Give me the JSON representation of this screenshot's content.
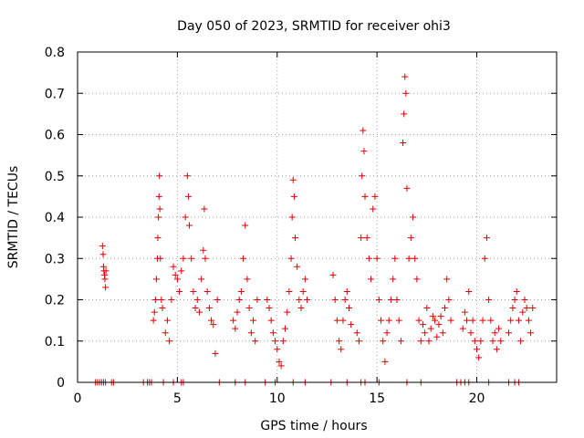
{
  "chart_data": {
    "type": "scatter",
    "title": "Day 050 of 2023, SRMTID for receiver ohi3",
    "xlabel": "GPS time / hours",
    "ylabel": "SRMTID / TECUs",
    "xlim": [
      0,
      24
    ],
    "ylim": [
      0,
      0.8
    ],
    "xticks": [
      0,
      5,
      10,
      15,
      20
    ],
    "yticks": [
      0,
      0.1,
      0.2,
      0.3,
      0.4,
      0.5,
      0.6,
      0.7,
      0.8
    ],
    "xtick_labels": [
      "0",
      "5",
      "10",
      "15",
      "20"
    ],
    "ytick_labels": [
      "0",
      "0.1",
      "0.2",
      "0.3",
      "0.4",
      "0.5",
      "0.6",
      "0.7",
      "0.8"
    ],
    "grid": true,
    "marker": "+",
    "marker_color": "#e00000",
    "series": [
      {
        "name": "SRMTID",
        "points": [
          [
            1.25,
            0.33
          ],
          [
            1.28,
            0.31
          ],
          [
            1.3,
            0.28
          ],
          [
            1.32,
            0.27
          ],
          [
            1.35,
            0.26
          ],
          [
            1.37,
            0.25
          ],
          [
            1.4,
            0.23
          ],
          [
            1.42,
            0.27
          ],
          [
            3.8,
            0.15
          ],
          [
            3.85,
            0.17
          ],
          [
            3.9,
            0.2
          ],
          [
            3.95,
            0.25
          ],
          [
            4.0,
            0.3
          ],
          [
            4.02,
            0.35
          ],
          [
            4.05,
            0.4
          ],
          [
            4.08,
            0.45
          ],
          [
            4.1,
            0.5
          ],
          [
            4.12,
            0.42
          ],
          [
            4.15,
            0.3
          ],
          [
            4.2,
            0.2
          ],
          [
            4.25,
            0.18
          ],
          [
            4.4,
            0.12
          ],
          [
            4.5,
            0.15
          ],
          [
            4.6,
            0.1
          ],
          [
            4.7,
            0.2
          ],
          [
            4.8,
            0.28
          ],
          [
            4.9,
            0.26
          ],
          [
            5.0,
            0.25
          ],
          [
            5.1,
            0.22
          ],
          [
            5.2,
            0.27
          ],
          [
            5.3,
            0.3
          ],
          [
            5.4,
            0.4
          ],
          [
            5.5,
            0.5
          ],
          [
            5.55,
            0.45
          ],
          [
            5.6,
            0.38
          ],
          [
            5.7,
            0.3
          ],
          [
            5.8,
            0.22
          ],
          [
            5.9,
            0.18
          ],
          [
            6.0,
            0.2
          ],
          [
            6.1,
            0.17
          ],
          [
            6.2,
            0.25
          ],
          [
            6.3,
            0.32
          ],
          [
            6.35,
            0.42
          ],
          [
            6.4,
            0.3
          ],
          [
            6.5,
            0.22
          ],
          [
            6.6,
            0.18
          ],
          [
            6.7,
            0.15
          ],
          [
            6.8,
            0.14
          ],
          [
            6.9,
            0.07
          ],
          [
            7.0,
            0.2
          ],
          [
            7.8,
            0.15
          ],
          [
            7.9,
            0.13
          ],
          [
            8.0,
            0.17
          ],
          [
            8.1,
            0.2
          ],
          [
            8.2,
            0.22
          ],
          [
            8.3,
            0.3
          ],
          [
            8.4,
            0.38
          ],
          [
            8.5,
            0.25
          ],
          [
            8.6,
            0.18
          ],
          [
            8.7,
            0.12
          ],
          [
            8.8,
            0.15
          ],
          [
            8.9,
            0.1
          ],
          [
            9.0,
            0.2
          ],
          [
            9.5,
            0.2
          ],
          [
            9.6,
            0.18
          ],
          [
            9.7,
            0.15
          ],
          [
            9.8,
            0.12
          ],
          [
            9.9,
            0.1
          ],
          [
            10.0,
            0.08
          ],
          [
            10.1,
            0.05
          ],
          [
            10.2,
            0.04
          ],
          [
            10.3,
            0.1
          ],
          [
            10.4,
            0.13
          ],
          [
            10.5,
            0.17
          ],
          [
            10.6,
            0.22
          ],
          [
            10.7,
            0.3
          ],
          [
            10.75,
            0.4
          ],
          [
            10.8,
            0.49
          ],
          [
            10.85,
            0.45
          ],
          [
            10.9,
            0.35
          ],
          [
            11.0,
            0.28
          ],
          [
            11.1,
            0.2
          ],
          [
            11.2,
            0.18
          ],
          [
            11.3,
            0.22
          ],
          [
            11.4,
            0.25
          ],
          [
            11.5,
            0.2
          ],
          [
            12.8,
            0.26
          ],
          [
            12.9,
            0.2
          ],
          [
            13.0,
            0.15
          ],
          [
            13.1,
            0.1
          ],
          [
            13.2,
            0.08
          ],
          [
            13.3,
            0.15
          ],
          [
            13.4,
            0.2
          ],
          [
            13.5,
            0.22
          ],
          [
            13.6,
            0.18
          ],
          [
            13.7,
            0.14
          ],
          [
            14.0,
            0.12
          ],
          [
            14.1,
            0.1
          ],
          [
            14.2,
            0.35
          ],
          [
            14.25,
            0.5
          ],
          [
            14.3,
            0.61
          ],
          [
            14.35,
            0.56
          ],
          [
            14.4,
            0.45
          ],
          [
            14.5,
            0.35
          ],
          [
            14.6,
            0.3
          ],
          [
            14.7,
            0.25
          ],
          [
            14.8,
            0.42
          ],
          [
            14.9,
            0.45
          ],
          [
            15.0,
            0.3
          ],
          [
            15.1,
            0.2
          ],
          [
            15.2,
            0.15
          ],
          [
            15.3,
            0.1
          ],
          [
            15.4,
            0.05
          ],
          [
            15.5,
            0.12
          ],
          [
            15.6,
            0.15
          ],
          [
            15.7,
            0.2
          ],
          [
            15.8,
            0.25
          ],
          [
            15.9,
            0.3
          ],
          [
            16.0,
            0.2
          ],
          [
            16.1,
            0.15
          ],
          [
            16.2,
            0.1
          ],
          [
            16.3,
            0.58
          ],
          [
            16.35,
            0.65
          ],
          [
            16.4,
            0.74
          ],
          [
            16.45,
            0.7
          ],
          [
            16.5,
            0.47
          ],
          [
            16.6,
            0.3
          ],
          [
            16.7,
            0.35
          ],
          [
            16.8,
            0.4
          ],
          [
            16.9,
            0.3
          ],
          [
            17.0,
            0.25
          ],
          [
            17.1,
            0.15
          ],
          [
            17.2,
            0.1
          ],
          [
            17.3,
            0.14
          ],
          [
            17.4,
            0.12
          ],
          [
            17.5,
            0.18
          ],
          [
            17.6,
            0.1
          ],
          [
            17.7,
            0.13
          ],
          [
            17.8,
            0.16
          ],
          [
            17.9,
            0.15
          ],
          [
            18.0,
            0.11
          ],
          [
            18.1,
            0.14
          ],
          [
            18.2,
            0.16
          ],
          [
            18.3,
            0.12
          ],
          [
            18.4,
            0.18
          ],
          [
            18.5,
            0.25
          ],
          [
            18.6,
            0.2
          ],
          [
            18.7,
            0.15
          ],
          [
            19.3,
            0.13
          ],
          [
            19.4,
            0.17
          ],
          [
            19.5,
            0.15
          ],
          [
            19.6,
            0.22
          ],
          [
            19.7,
            0.12
          ],
          [
            19.8,
            0.15
          ],
          [
            19.9,
            0.1
          ],
          [
            20.0,
            0.08
          ],
          [
            20.1,
            0.06
          ],
          [
            20.2,
            0.1
          ],
          [
            20.3,
            0.15
          ],
          [
            20.4,
            0.3
          ],
          [
            20.5,
            0.35
          ],
          [
            20.6,
            0.2
          ],
          [
            20.7,
            0.15
          ],
          [
            20.8,
            0.1
          ],
          [
            20.9,
            0.12
          ],
          [
            21.0,
            0.08
          ],
          [
            21.1,
            0.13
          ],
          [
            21.2,
            0.1
          ],
          [
            21.6,
            0.12
          ],
          [
            21.7,
            0.15
          ],
          [
            21.8,
            0.18
          ],
          [
            21.9,
            0.2
          ],
          [
            22.0,
            0.22
          ],
          [
            22.1,
            0.15
          ],
          [
            22.2,
            0.1
          ],
          [
            22.3,
            0.17
          ],
          [
            22.4,
            0.2
          ],
          [
            22.5,
            0.18
          ],
          [
            22.6,
            0.15
          ],
          [
            22.7,
            0.12
          ],
          [
            22.8,
            0.18
          ],
          [
            0.9,
            0.0
          ],
          [
            1.0,
            0.0
          ],
          [
            1.1,
            0.0
          ],
          [
            1.2,
            0.0
          ],
          [
            1.3,
            0.0
          ],
          [
            1.4,
            0.0
          ],
          [
            1.7,
            0.0
          ],
          [
            1.8,
            0.0
          ],
          [
            3.3,
            0.0
          ],
          [
            3.5,
            0.0
          ],
          [
            3.6,
            0.0
          ],
          [
            3.7,
            0.0
          ],
          [
            4.3,
            0.0
          ],
          [
            4.8,
            0.0
          ],
          [
            5.2,
            0.0
          ],
          [
            5.3,
            0.0
          ],
          [
            7.1,
            0.0
          ],
          [
            7.9,
            0.0
          ],
          [
            8.4,
            0.0
          ],
          [
            9.4,
            0.0
          ],
          [
            9.9,
            0.0
          ],
          [
            10.8,
            0.0
          ],
          [
            11.4,
            0.0
          ],
          [
            12.7,
            0.0
          ],
          [
            13.5,
            0.0
          ],
          [
            14.2,
            0.0
          ],
          [
            14.4,
            0.0
          ],
          [
            15.1,
            0.0
          ],
          [
            16.5,
            0.0
          ],
          [
            17.2,
            0.0
          ],
          [
            19.0,
            0.0
          ],
          [
            19.2,
            0.0
          ],
          [
            19.4,
            0.0
          ],
          [
            19.6,
            0.0
          ],
          [
            20.6,
            0.0
          ],
          [
            21.6,
            0.0
          ],
          [
            21.9,
            0.0
          ],
          [
            22.1,
            0.0
          ]
        ]
      }
    ]
  }
}
